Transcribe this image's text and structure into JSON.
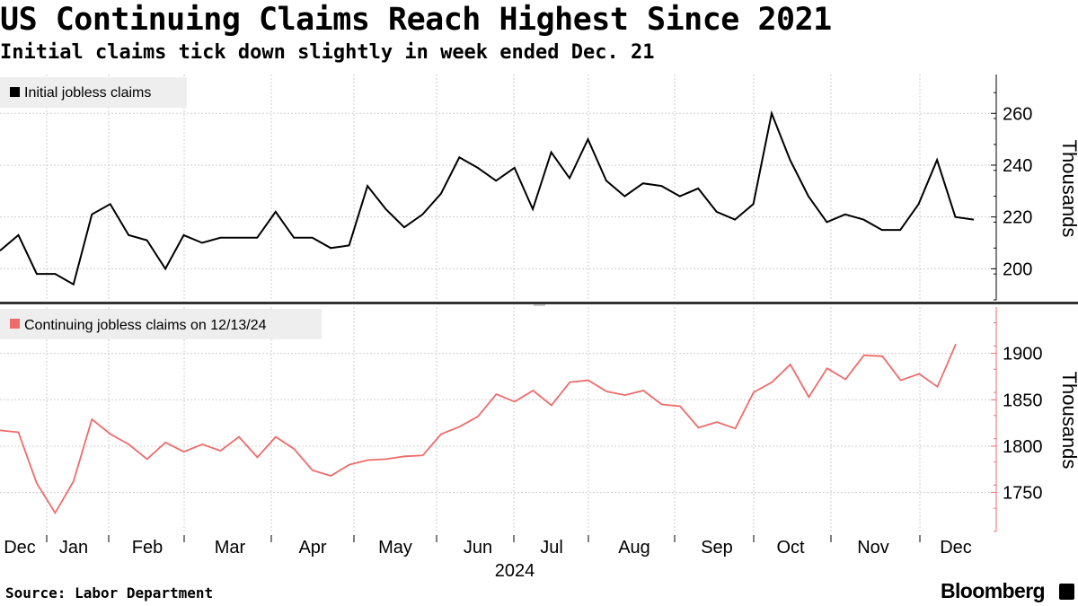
{
  "header": {
    "title": "US Continuing Claims Reach Highest Since 2021",
    "subtitle": "Initial claims tick down slightly in week ended Dec. 21"
  },
  "footer": {
    "source": "Source: Labor Department",
    "brand": "Bloomberg"
  },
  "chart_data": [
    {
      "type": "line",
      "title": "",
      "legend": {
        "label": "Initial jobless claims",
        "placement": "top-left"
      },
      "series": [
        {
          "name": "Initial jobless claims",
          "color": "#000000",
          "values": [
            207,
            213,
            198,
            198,
            194,
            221,
            225,
            213,
            211,
            200,
            213,
            210,
            212,
            212,
            212,
            222,
            212,
            212,
            208,
            209,
            232,
            223,
            216,
            221,
            229,
            243,
            239,
            234,
            239,
            223,
            245,
            235,
            250,
            234,
            228,
            233,
            232,
            228,
            231,
            222,
            219,
            225,
            260,
            242,
            228,
            218,
            221,
            219,
            215,
            215,
            225,
            242,
            220,
            219
          ]
        }
      ],
      "ylabel": "Thousands",
      "ylim": [
        188,
        275
      ],
      "yticks": [
        "200",
        "220",
        "240",
        "260"
      ],
      "grid": true
    },
    {
      "type": "line",
      "title": "",
      "legend": {
        "label": "Continuing jobless claims on 12/13/24",
        "placement": "top-left"
      },
      "series": [
        {
          "name": "Continuing jobless claims on 12/13/24",
          "color": "#ef6b6b",
          "values": [
            1817,
            1815,
            1760,
            1728,
            1762,
            1829,
            1813,
            1802,
            1786,
            1804,
            1794,
            1802,
            1795,
            1810,
            1788,
            1810,
            1797,
            1774,
            1768,
            1780,
            1785,
            1786,
            1789,
            1790,
            1813,
            1821,
            1832,
            1856,
            1848,
            1860,
            1844,
            1869,
            1871,
            1859,
            1855,
            1860,
            1845,
            1843,
            1820,
            1826,
            1819,
            1858,
            1869,
            1888,
            1853,
            1884,
            1872,
            1898,
            1897,
            1871,
            1878,
            1864,
            1910
          ]
        }
      ],
      "ylabel": "Thousands",
      "ylim": [
        1708,
        1950
      ],
      "yticks": [
        "1750",
        "1800",
        "1850",
        "1900"
      ],
      "grid": true
    }
  ],
  "x_axis": {
    "months": [
      "Dec",
      "Jan",
      "Feb",
      "Mar",
      "Apr",
      "May",
      "Jun",
      "Jul",
      "Aug",
      "Sep",
      "Oct",
      "Nov",
      "Dec"
    ],
    "year": "2024"
  }
}
